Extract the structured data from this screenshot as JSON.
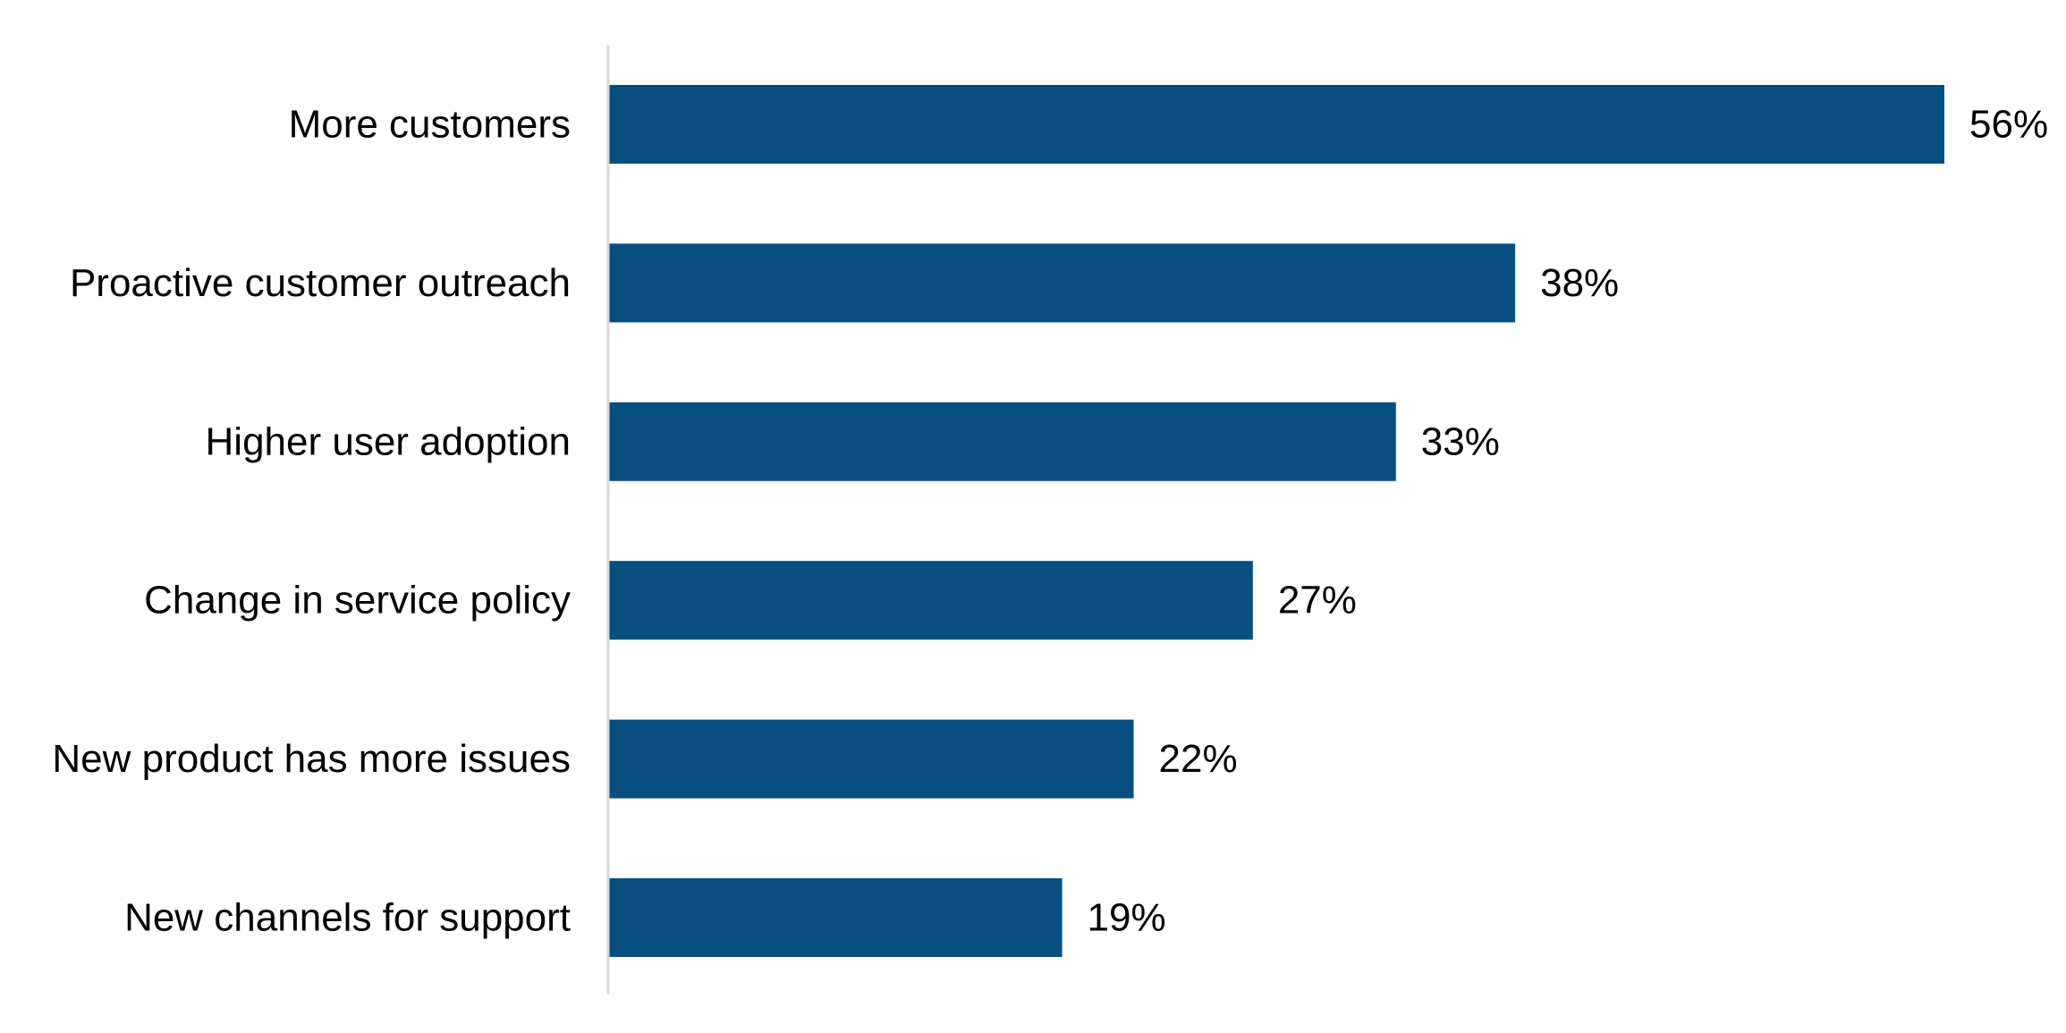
{
  "chart_data": {
    "type": "bar",
    "orientation": "horizontal",
    "categories": [
      "More customers",
      "Proactive customer outreach",
      "Higher user adoption",
      "Change in service policy",
      "New product has more issues",
      "New channels for support"
    ],
    "values": [
      56,
      38,
      33,
      27,
      22,
      19
    ],
    "value_labels": [
      "56%",
      "38%",
      "33%",
      "27%",
      "22%",
      "19%"
    ],
    "unit": "%",
    "xlim": [
      0,
      56
    ],
    "grid": false,
    "legend": "none",
    "title": "",
    "xlabel": "",
    "ylabel": "",
    "colors": {
      "bar": "#074f80",
      "axis": "#d9d9d9",
      "text": "#000000"
    }
  }
}
